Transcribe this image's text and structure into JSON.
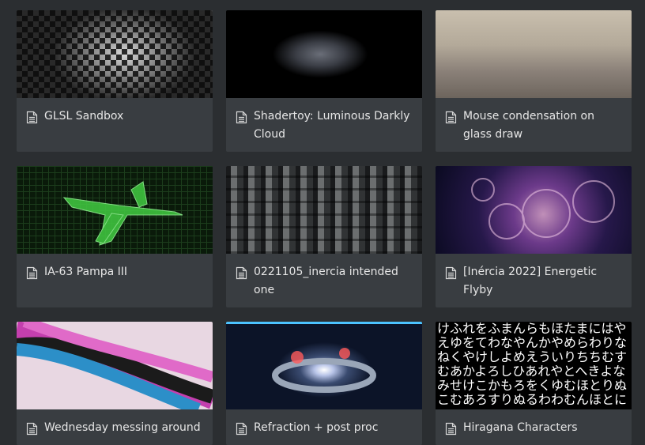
{
  "cards": [
    {
      "title": "GLSL Sandbox"
    },
    {
      "title": "Shadertoy: Luminous Darkly Cloud"
    },
    {
      "title": "Mouse condensation on glass draw"
    },
    {
      "title": "IA-63 Pampa III"
    },
    {
      "title": "0221105_inercia intended one"
    },
    {
      "title": "[Inércia 2022] Energetic Flyby"
    },
    {
      "title": "Wednesday messing around"
    },
    {
      "title": "Refraction + post proc"
    },
    {
      "title": "Hiragana Characters",
      "thumbnail_text": [
        "けふれをふまんらもほたまにはや",
        "えゆをてわなやんかやめらわりな",
        "ねくやけしよめえういりちちむす",
        "むあかよろしひあれやとへきよな",
        "みせけこかもろをくゆむほとりぬ",
        "こむあろすりぬるわわむんほとに"
      ]
    }
  ]
}
